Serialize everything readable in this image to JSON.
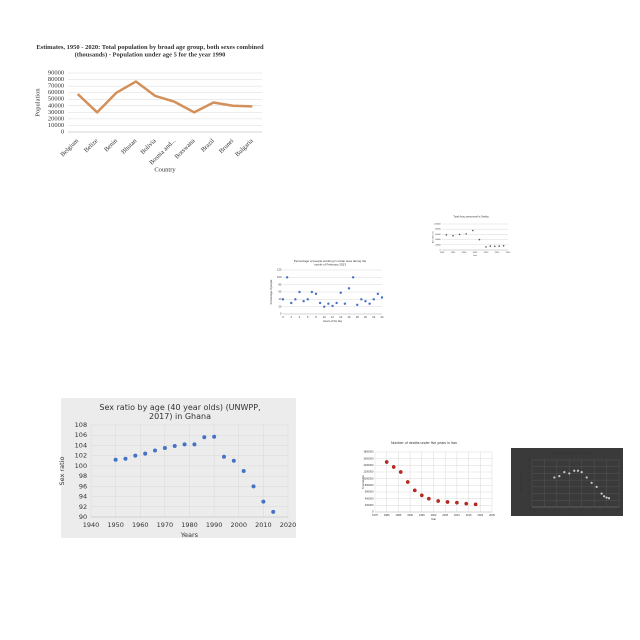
{
  "chart_data": [
    {
      "type": "line",
      "title": "Estimates, 1950 - 2020: Total population by broad age group, both sexes combined (thousands) - Population under age 5 for the year 1990",
      "x_label": "Country",
      "y_label": "Population",
      "categories": [
        "Belgium",
        "Belize",
        "Benin",
        "Bhutan",
        "Bolivia",
        "Bosnia and...",
        "Botswana",
        "Brazil",
        "Brunei",
        "Bulgaria"
      ],
      "values": [
        58000,
        30000,
        60000,
        77000,
        55000,
        46000,
        30000,
        45000,
        40000,
        39000
      ],
      "color": "#d4905a",
      "ylim": [
        0,
        90000
      ],
      "yticks": [
        0,
        10000,
        20000,
        30000,
        40000,
        50000,
        60000,
        70000,
        80000,
        90000
      ],
      "grid": true
    },
    {
      "type": "scatter",
      "title": "Total Army personnel in Serbia",
      "x_label": "Year",
      "y_label": "Armed forces",
      "x": [
        1992,
        1995,
        1998,
        2001,
        2004,
        2007,
        2010,
        2012,
        2014,
        2016,
        2018
      ],
      "values": [
        58000,
        55000,
        60000,
        62000,
        75000,
        40000,
        12000,
        15000,
        14000,
        15000,
        16000
      ],
      "color": "#555555",
      "xlim": [
        1990,
        2020
      ],
      "xticks": [
        1990,
        1995,
        2000,
        2005,
        2010,
        2015,
        2020
      ],
      "ylim": [
        0,
        100000
      ],
      "yticks": [
        0,
        20000,
        40000,
        60000,
        80000,
        100000
      ],
      "grid": true
    },
    {
      "type": "scatter",
      "title": "Percentage of people working in urban area during the month of February 2023",
      "x_label": "Hours of the day",
      "y_label": "Percentage of people",
      "x": [
        0,
        1,
        2,
        3,
        4,
        5,
        6,
        7,
        8,
        9,
        10,
        11,
        12,
        13,
        14,
        15,
        16,
        17,
        18,
        19,
        20,
        21,
        22,
        23,
        24
      ],
      "values": [
        40,
        100,
        30,
        40,
        60,
        35,
        40,
        60,
        55,
        30,
        20,
        28,
        22,
        30,
        58,
        28,
        70,
        100,
        25,
        40,
        35,
        28,
        40,
        55,
        45
      ],
      "color": "#4472c4",
      "xlim": [
        0,
        24
      ],
      "xticks": [
        0,
        2,
        4,
        6,
        8,
        10,
        12,
        14,
        16,
        18,
        20,
        22,
        24
      ],
      "ylim": [
        0,
        120
      ],
      "yticks": [
        0,
        20,
        40,
        60,
        80,
        100,
        120
      ],
      "grid": true
    },
    {
      "type": "scatter",
      "title": "Sex ratio by age (40 year olds) (UNWPP, 2017) in Ghana",
      "x_label": "Years",
      "y_label": "Sex ratio",
      "x": [
        1950,
        1954,
        1958,
        1962,
        1966,
        1970,
        1974,
        1978,
        1982,
        1986,
        1990,
        1994,
        1998,
        2002,
        2006,
        2010,
        2014
      ],
      "values": [
        101.2,
        101.4,
        102,
        102.4,
        103,
        103.5,
        103.9,
        104.2,
        104.2,
        105.6,
        105.7,
        101.8,
        101,
        99,
        96,
        93,
        91
      ],
      "color": "#4472c4",
      "background": "#ececec",
      "xlim": [
        1940,
        2020
      ],
      "xticks": [
        1940,
        1950,
        1960,
        1970,
        1980,
        1990,
        2000,
        2010,
        2020
      ],
      "ylim": [
        90,
        108
      ],
      "yticks": [
        90,
        92,
        94,
        96,
        98,
        100,
        102,
        104,
        106,
        108
      ],
      "grid": true,
      "xgrid": true
    },
    {
      "type": "scatter",
      "title": "Number of deaths under five years in Iran",
      "x_label": "Year",
      "y_label": "Total deaths",
      "x": [
        1980,
        1983,
        1986,
        1989,
        1992,
        1995,
        1998,
        2002,
        2006,
        2010,
        2014,
        2018
      ],
      "values": [
        1500000,
        1350000,
        1200000,
        900000,
        650000,
        500000,
        400000,
        330000,
        300000,
        280000,
        250000,
        230000
      ],
      "color": "#c0281c",
      "xlim": [
        1975,
        2025
      ],
      "xticks": [
        1975,
        1980,
        1985,
        1990,
        1995,
        2000,
        2005,
        2010,
        2015,
        2020,
        2025
      ],
      "ylim": [
        0,
        1800000
      ],
      "yticks": [
        0,
        200000,
        400000,
        600000,
        800000,
        1000000,
        1200000,
        1400000,
        1600000,
        1800000
      ],
      "grid": true,
      "xgrid": true
    },
    {
      "type": "scatter",
      "title": "Agricultural take in fish farms",
      "x_label": "Year",
      "y_label": "Agricultural take",
      "x": [
        1968,
        1972,
        1976,
        1980,
        1984,
        1987,
        1990,
        1994,
        1998,
        2002,
        2006,
        2008,
        2010,
        2012
      ],
      "values": [
        22,
        23,
        26,
        25,
        27,
        27,
        26,
        22,
        18,
        15,
        10,
        8,
        7,
        6.5
      ],
      "color": "#cccccc",
      "background": "#3a3a3a",
      "xlim": [
        1950,
        2020
      ],
      "xticks": [
        1950,
        1960,
        1970,
        1980,
        1990,
        2000,
        2010,
        2020
      ],
      "ylim": [
        0,
        35
      ],
      "yticks": [
        0,
        5,
        10,
        15,
        20,
        25,
        30,
        35
      ],
      "grid": true,
      "xgrid": true
    }
  ]
}
